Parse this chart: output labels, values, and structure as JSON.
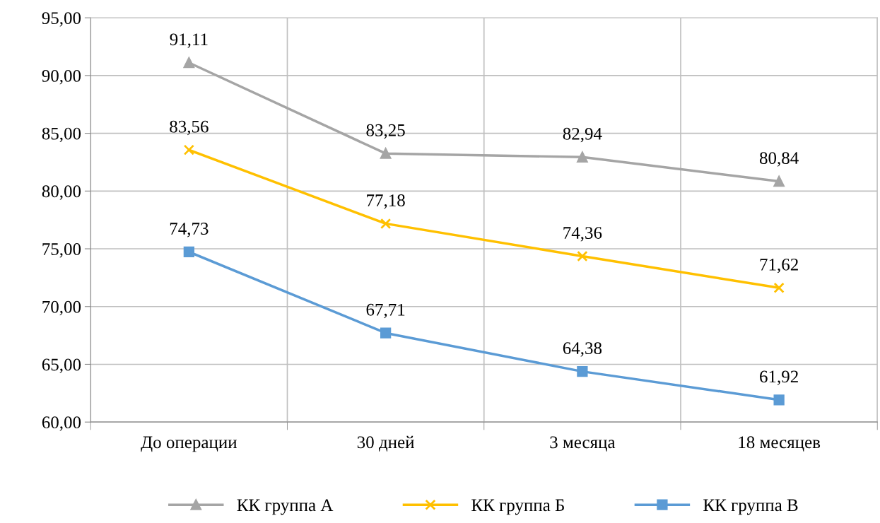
{
  "chart_data": {
    "type": "line",
    "categories": [
      "До операции",
      "30 дней",
      "3 месяца",
      "18 месяцев"
    ],
    "series": [
      {
        "name": "КК группа А",
        "color": "#a5a5a5",
        "marker": "triangle",
        "values": [
          91.11,
          83.25,
          82.94,
          80.84
        ],
        "value_labels": [
          "91,11",
          "83,25",
          "82,94",
          "80,84"
        ]
      },
      {
        "name": "КК группа Б",
        "color": "#ffc000",
        "marker": "cross",
        "values": [
          83.56,
          77.18,
          74.36,
          71.62
        ],
        "value_labels": [
          "83,56",
          "77,18",
          "74,36",
          "71,62"
        ]
      },
      {
        "name": "КК группа В",
        "color": "#5b9bd5",
        "marker": "square",
        "values": [
          74.73,
          67.71,
          64.38,
          61.92
        ],
        "value_labels": [
          "74,73",
          "67,71",
          "64,38",
          "61,92"
        ]
      }
    ],
    "ylim": [
      60,
      95
    ],
    "yticks": [
      {
        "value": 60,
        "label": "60,00"
      },
      {
        "value": 65,
        "label": "65,00"
      },
      {
        "value": 70,
        "label": "70,00"
      },
      {
        "value": 75,
        "label": "75,00"
      },
      {
        "value": 80,
        "label": "80,00"
      },
      {
        "value": 85,
        "label": "85,00"
      },
      {
        "value": 90,
        "label": "90,00"
      },
      {
        "value": 95,
        "label": "95,00"
      }
    ],
    "grid": true,
    "legend": "bottom"
  }
}
